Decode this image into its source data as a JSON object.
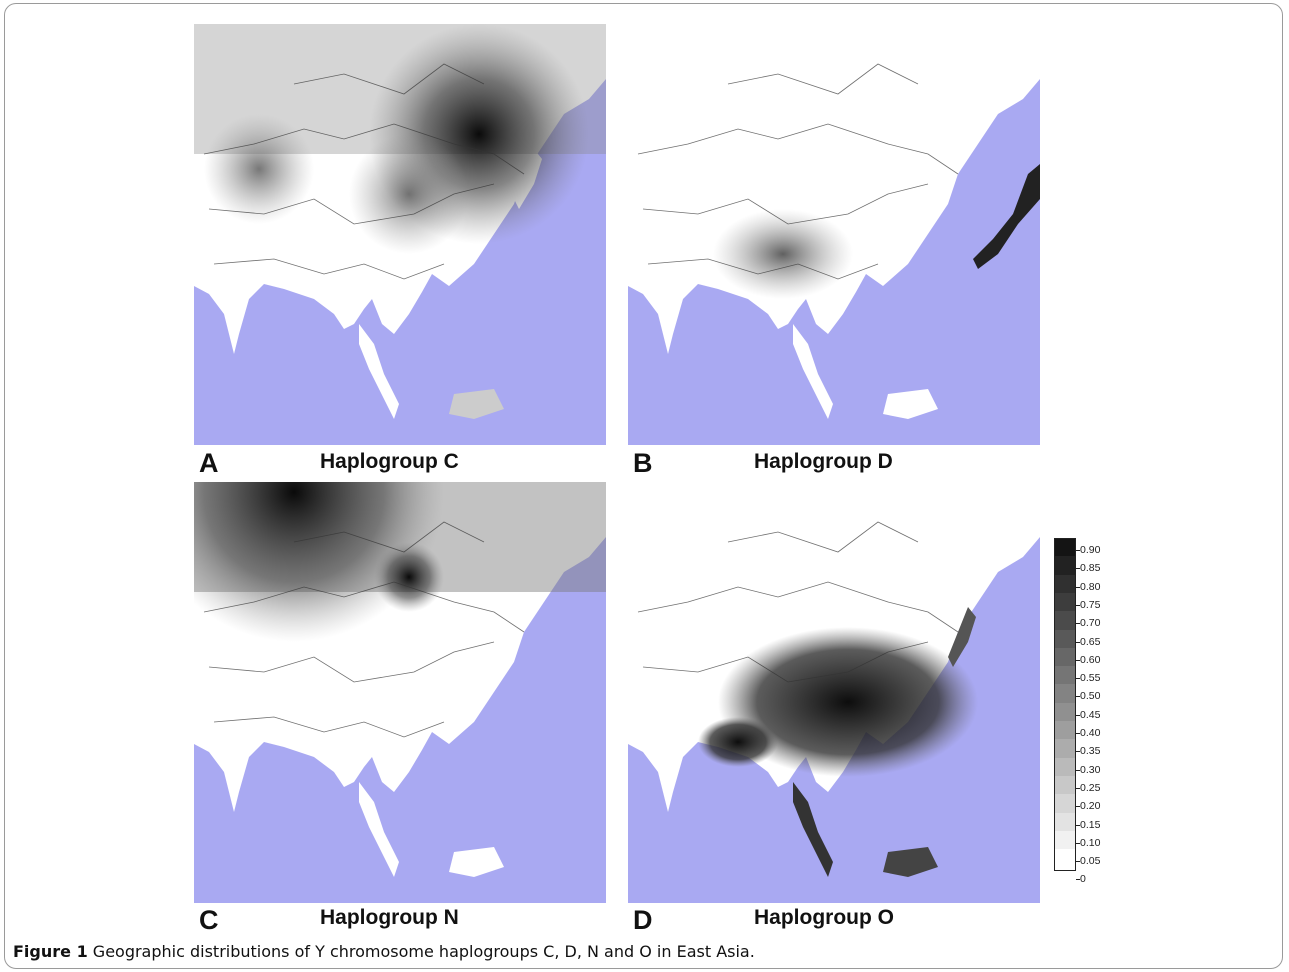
{
  "figure": {
    "caption_label": "Figure 1",
    "caption_text": " Geographic distributions of Y chromosome haplogroups C, D, N and O in East Asia."
  },
  "panels": [
    {
      "letter": "A",
      "title": "Haplogroup C"
    },
    {
      "letter": "B",
      "title": "Haplogroup D"
    },
    {
      "letter": "C",
      "title": "Haplogroup N"
    },
    {
      "letter": "D",
      "title": "Haplogroup O"
    }
  ],
  "legend": {
    "labels": [
      "0.90",
      "0.85",
      "0.80",
      "0.75",
      "0.70",
      "0.65",
      "0.60",
      "0.55",
      "0.50",
      "0.45",
      "0.40",
      "0.35",
      "0.30",
      "0.25",
      "0.20",
      "0.15",
      "0.10",
      "0.05",
      "0"
    ]
  },
  "colors": {
    "sea": "#a9a9f2",
    "land": "#ffffff",
    "border": "#333333"
  }
}
